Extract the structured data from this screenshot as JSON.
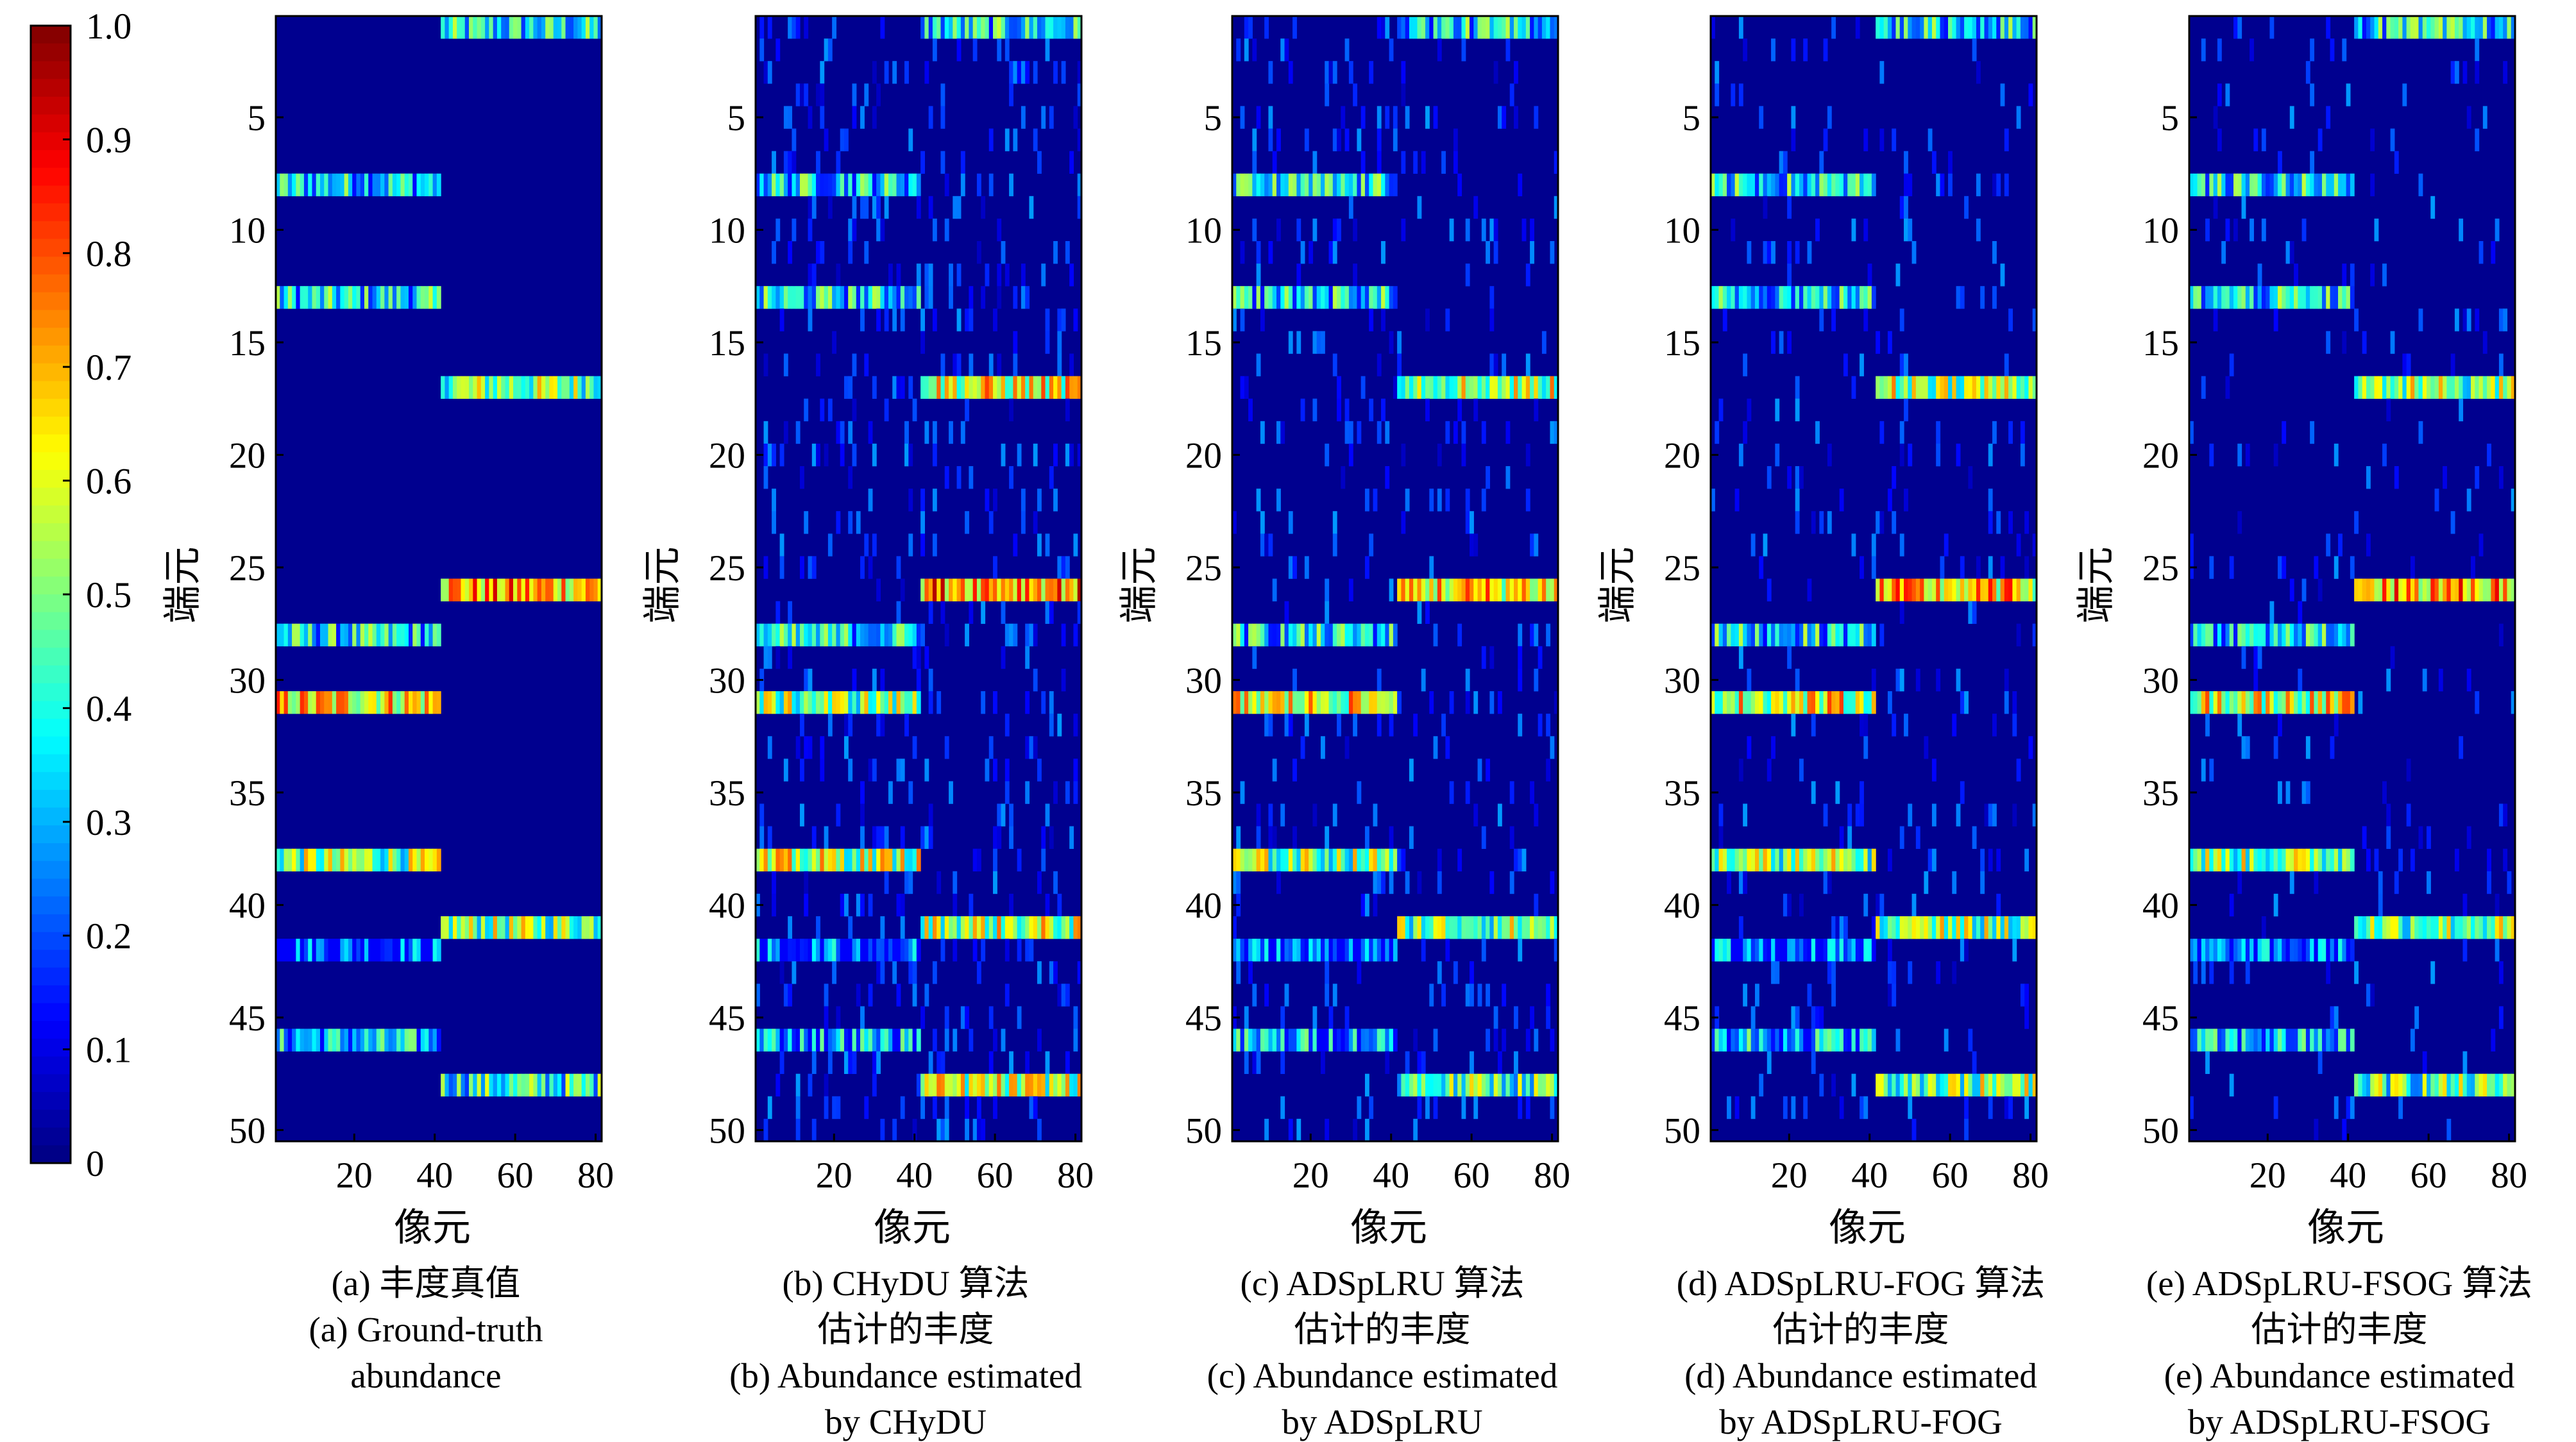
{
  "colors": {
    "colormap": "jet",
    "background": "#00008f",
    "jet_stops": [
      "#00007f",
      "#0000ff",
      "#007fff",
      "#00ffff",
      "#7fff7f",
      "#ffff00",
      "#ff7f00",
      "#ff0000",
      "#7f0000"
    ]
  },
  "colorbar": {
    "ticks": [
      "1.0",
      "0.9",
      "0.8",
      "0.7",
      "0.6",
      "0.5",
      "0.4",
      "0.3",
      "0.2",
      "0.1",
      "0"
    ],
    "range": [
      0,
      1
    ]
  },
  "chart_data": [
    {
      "type": "heatmap",
      "xlabel": "像元",
      "ylabel": "端元",
      "xticks": [
        "20",
        "40",
        "60",
        "80"
      ],
      "yticks": [
        "5",
        "10",
        "15",
        "20",
        "25",
        "30",
        "35",
        "40",
        "45",
        "50"
      ],
      "xlim": [
        1,
        81
      ],
      "ylim": [
        1,
        50
      ],
      "clim": [
        0,
        1
      ],
      "caption": [
        "(a) 丰度真值",
        "(a) Ground-truth",
        "abundance"
      ],
      "noise": 0,
      "rows": [
        {
          "endmember": 1,
          "pixels": [
            42,
            81
          ],
          "level": 0.35
        },
        {
          "endmember": 8,
          "pixels": [
            1,
            41
          ],
          "level": 0.35
        },
        {
          "endmember": 13,
          "pixels": [
            1,
            41
          ],
          "level": 0.35
        },
        {
          "endmember": 17,
          "pixels": [
            42,
            81
          ],
          "level": 0.5
        },
        {
          "endmember": 26,
          "pixels": [
            42,
            81
          ],
          "level": 0.7
        },
        {
          "endmember": 28,
          "pixels": [
            1,
            41
          ],
          "level": 0.35
        },
        {
          "endmember": 31,
          "pixels": [
            1,
            41
          ],
          "level": 0.65
        },
        {
          "endmember": 38,
          "pixels": [
            1,
            41
          ],
          "level": 0.5
        },
        {
          "endmember": 41,
          "pixels": [
            42,
            81
          ],
          "level": 0.5
        },
        {
          "endmember": 42,
          "pixels": [
            1,
            41
          ],
          "level": 0.2
        },
        {
          "endmember": 46,
          "pixels": [
            1,
            41
          ],
          "level": 0.3
        },
        {
          "endmember": 48,
          "pixels": [
            42,
            81
          ],
          "level": 0.4
        }
      ]
    },
    {
      "type": "heatmap",
      "xlabel": "像元",
      "ylabel": "端元",
      "xticks": [
        "20",
        "40",
        "60",
        "80"
      ],
      "yticks": [
        "5",
        "10",
        "15",
        "20",
        "25",
        "30",
        "35",
        "40",
        "45",
        "50"
      ],
      "xlim": [
        1,
        81
      ],
      "ylim": [
        1,
        50
      ],
      "clim": [
        0,
        1
      ],
      "caption": [
        "(b) CHyDU 算法",
        "估计的丰度",
        "(b) Abundance estimated",
        "by CHyDU"
      ],
      "noise": 0.14,
      "rows": [
        {
          "endmember": 1,
          "pixels": [
            42,
            81
          ],
          "level": 0.35
        },
        {
          "endmember": 8,
          "pixels": [
            1,
            41
          ],
          "level": 0.35
        },
        {
          "endmember": 13,
          "pixels": [
            1,
            41
          ],
          "level": 0.35
        },
        {
          "endmember": 17,
          "pixels": [
            42,
            81
          ],
          "level": 0.6
        },
        {
          "endmember": 26,
          "pixels": [
            42,
            81
          ],
          "level": 0.75
        },
        {
          "endmember": 28,
          "pixels": [
            1,
            41
          ],
          "level": 0.35
        },
        {
          "endmember": 31,
          "pixels": [
            1,
            41
          ],
          "level": 0.5
        },
        {
          "endmember": 38,
          "pixels": [
            1,
            41
          ],
          "level": 0.55
        },
        {
          "endmember": 41,
          "pixels": [
            42,
            81
          ],
          "level": 0.55
        },
        {
          "endmember": 42,
          "pixels": [
            1,
            41
          ],
          "level": 0.2
        },
        {
          "endmember": 46,
          "pixels": [
            1,
            41
          ],
          "level": 0.3
        },
        {
          "endmember": 48,
          "pixels": [
            42,
            81
          ],
          "level": 0.55
        }
      ]
    },
    {
      "type": "heatmap",
      "xlabel": "像元",
      "ylabel": "端元",
      "xticks": [
        "20",
        "40",
        "60",
        "80"
      ],
      "yticks": [
        "5",
        "10",
        "15",
        "20",
        "25",
        "30",
        "35",
        "40",
        "45",
        "50"
      ],
      "xlim": [
        1,
        81
      ],
      "ylim": [
        1,
        50
      ],
      "clim": [
        0,
        1
      ],
      "caption": [
        "(c) ADSpLRU 算法",
        "估计的丰度",
        "(c) Abundance estimated",
        "by ADSpLRU"
      ],
      "noise": 0.1,
      "rows": [
        {
          "endmember": 1,
          "pixels": [
            42,
            81
          ],
          "level": 0.35
        },
        {
          "endmember": 8,
          "pixels": [
            1,
            41
          ],
          "level": 0.35
        },
        {
          "endmember": 13,
          "pixels": [
            1,
            41
          ],
          "level": 0.35
        },
        {
          "endmember": 17,
          "pixels": [
            42,
            81
          ],
          "level": 0.55
        },
        {
          "endmember": 26,
          "pixels": [
            42,
            81
          ],
          "level": 0.65
        },
        {
          "endmember": 28,
          "pixels": [
            1,
            41
          ],
          "level": 0.35
        },
        {
          "endmember": 31,
          "pixels": [
            1,
            41
          ],
          "level": 0.6
        },
        {
          "endmember": 38,
          "pixels": [
            1,
            41
          ],
          "level": 0.5
        },
        {
          "endmember": 41,
          "pixels": [
            42,
            81
          ],
          "level": 0.5
        },
        {
          "endmember": 42,
          "pixels": [
            1,
            41
          ],
          "level": 0.2
        },
        {
          "endmember": 46,
          "pixels": [
            1,
            41
          ],
          "level": 0.3
        },
        {
          "endmember": 48,
          "pixels": [
            42,
            81
          ],
          "level": 0.45
        }
      ]
    },
    {
      "type": "heatmap",
      "xlabel": "像元",
      "ylabel": "端元",
      "xticks": [
        "20",
        "40",
        "60",
        "80"
      ],
      "yticks": [
        "5",
        "10",
        "15",
        "20",
        "25",
        "30",
        "35",
        "40",
        "45",
        "50"
      ],
      "xlim": [
        1,
        81
      ],
      "ylim": [
        1,
        50
      ],
      "clim": [
        0,
        1
      ],
      "caption": [
        "(d) ADSpLRU-FOG 算法",
        "估计的丰度",
        "(d) Abundance estimated",
        "by ADSpLRU-FOG"
      ],
      "noise": 0.08,
      "rows": [
        {
          "endmember": 1,
          "pixels": [
            42,
            81
          ],
          "level": 0.35
        },
        {
          "endmember": 8,
          "pixels": [
            1,
            41
          ],
          "level": 0.35
        },
        {
          "endmember": 13,
          "pixels": [
            1,
            41
          ],
          "level": 0.35
        },
        {
          "endmember": 17,
          "pixels": [
            42,
            81
          ],
          "level": 0.55
        },
        {
          "endmember": 26,
          "pixels": [
            42,
            81
          ],
          "level": 0.65
        },
        {
          "endmember": 28,
          "pixels": [
            1,
            41
          ],
          "level": 0.35
        },
        {
          "endmember": 31,
          "pixels": [
            1,
            41
          ],
          "level": 0.6
        },
        {
          "endmember": 38,
          "pixels": [
            1,
            41
          ],
          "level": 0.5
        },
        {
          "endmember": 41,
          "pixels": [
            42,
            81
          ],
          "level": 0.5
        },
        {
          "endmember": 42,
          "pixels": [
            1,
            41
          ],
          "level": 0.2
        },
        {
          "endmember": 46,
          "pixels": [
            1,
            41
          ],
          "level": 0.3
        },
        {
          "endmember": 48,
          "pixels": [
            42,
            81
          ],
          "level": 0.5
        }
      ]
    },
    {
      "type": "heatmap",
      "xlabel": "像元",
      "ylabel": "端元",
      "xticks": [
        "20",
        "40",
        "60",
        "80"
      ],
      "yticks": [
        "5",
        "10",
        "15",
        "20",
        "25",
        "30",
        "35",
        "40",
        "45",
        "50"
      ],
      "xlim": [
        1,
        81
      ],
      "ylim": [
        1,
        50
      ],
      "clim": [
        0,
        1
      ],
      "caption": [
        "(e) ADSpLRU-FSOG 算法",
        "估计的丰度",
        "(e) Abundance estimated",
        "by ADSpLRU-FSOG"
      ],
      "noise": 0.06,
      "rows": [
        {
          "endmember": 1,
          "pixels": [
            42,
            81
          ],
          "level": 0.35
        },
        {
          "endmember": 8,
          "pixels": [
            1,
            41
          ],
          "level": 0.35
        },
        {
          "endmember": 13,
          "pixels": [
            1,
            41
          ],
          "level": 0.35
        },
        {
          "endmember": 17,
          "pixels": [
            42,
            81
          ],
          "level": 0.5
        },
        {
          "endmember": 26,
          "pixels": [
            42,
            81
          ],
          "level": 0.7
        },
        {
          "endmember": 28,
          "pixels": [
            1,
            41
          ],
          "level": 0.35
        },
        {
          "endmember": 31,
          "pixels": [
            1,
            41
          ],
          "level": 0.6
        },
        {
          "endmember": 38,
          "pixels": [
            1,
            41
          ],
          "level": 0.5
        },
        {
          "endmember": 41,
          "pixels": [
            42,
            81
          ],
          "level": 0.5
        },
        {
          "endmember": 42,
          "pixels": [
            1,
            41
          ],
          "level": 0.2
        },
        {
          "endmember": 46,
          "pixels": [
            1,
            41
          ],
          "level": 0.3
        },
        {
          "endmember": 48,
          "pixels": [
            42,
            81
          ],
          "level": 0.45
        }
      ]
    }
  ]
}
